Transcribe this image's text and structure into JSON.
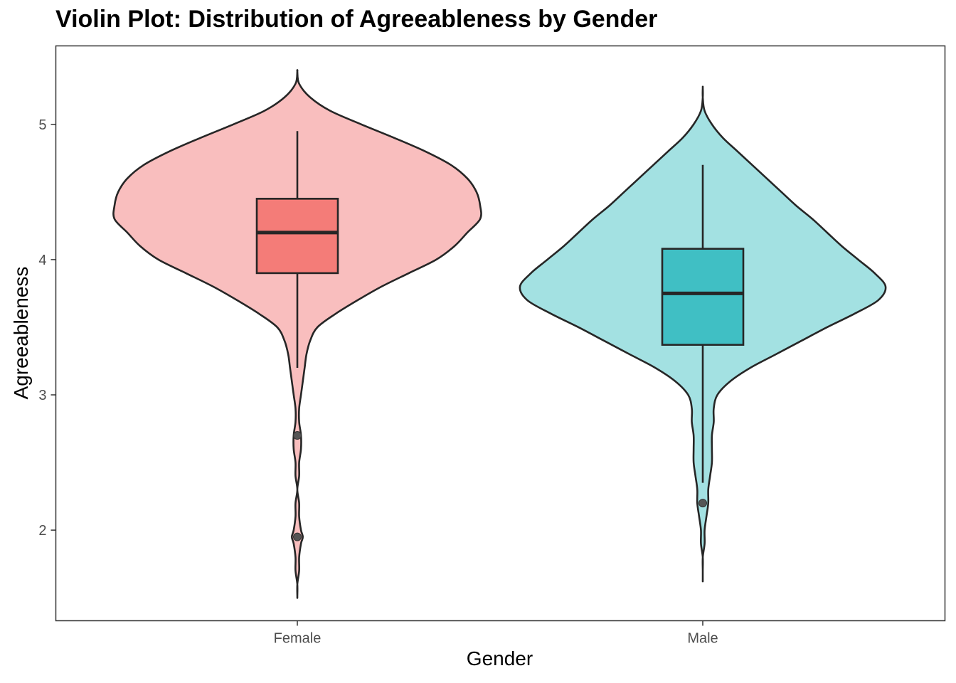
{
  "chart_data": {
    "type": "violin",
    "title": "Violin Plot: Distribution of Agreeableness by Gender",
    "xlabel": "Gender",
    "ylabel": "Agreeableness",
    "ylim": [
      1.33,
      5.58
    ],
    "yticks": [
      2,
      3,
      4,
      5
    ],
    "ytick_labels": [
      "2",
      "3",
      "4",
      "5"
    ],
    "categories": [
      "Female",
      "Male"
    ],
    "grid": false,
    "legend": "none",
    "series": [
      {
        "name": "Female",
        "violin_color": "#F9BEBE",
        "box_color": "#F47C78",
        "box": {
          "min": 3.2,
          "q1": 3.9,
          "median": 4.2,
          "q3": 4.45,
          "max": 4.95
        },
        "outliers": [
          2.7,
          1.95
        ],
        "density_profile": [
          [
            5.39,
            0.0
          ],
          [
            5.3,
            0.01
          ],
          [
            5.2,
            0.07
          ],
          [
            5.1,
            0.18
          ],
          [
            5.0,
            0.35
          ],
          [
            4.9,
            0.53
          ],
          [
            4.8,
            0.7
          ],
          [
            4.7,
            0.84
          ],
          [
            4.6,
            0.93
          ],
          [
            4.5,
            0.98
          ],
          [
            4.4,
            1.0
          ],
          [
            4.3,
            1.0
          ],
          [
            4.2,
            0.93
          ],
          [
            4.1,
            0.86
          ],
          [
            4.0,
            0.76
          ],
          [
            3.9,
            0.61
          ],
          [
            3.8,
            0.46
          ],
          [
            3.7,
            0.33
          ],
          [
            3.6,
            0.21
          ],
          [
            3.5,
            0.11
          ],
          [
            3.4,
            0.07
          ],
          [
            3.3,
            0.05
          ],
          [
            3.2,
            0.04
          ],
          [
            3.1,
            0.03
          ],
          [
            3.0,
            0.02
          ],
          [
            2.9,
            0.01
          ],
          [
            2.8,
            0.01
          ],
          [
            2.7,
            0.02
          ],
          [
            2.6,
            0.02
          ],
          [
            2.5,
            0.01
          ],
          [
            2.4,
            0.01
          ],
          [
            2.3,
            0.0
          ],
          [
            2.2,
            0.01
          ],
          [
            2.1,
            0.01
          ],
          [
            2.0,
            0.02
          ],
          [
            1.95,
            0.03
          ],
          [
            1.9,
            0.02
          ],
          [
            1.8,
            0.01
          ],
          [
            1.7,
            0.01
          ],
          [
            1.6,
            0.0
          ],
          [
            1.51,
            0.0
          ]
        ]
      },
      {
        "name": "Male",
        "violin_color": "#A3E1E2",
        "box_color": "#40BFC4",
        "box": {
          "min": 2.35,
          "q1": 3.37,
          "median": 3.75,
          "q3": 4.08,
          "max": 4.7
        },
        "outliers": [
          2.2
        ],
        "density_profile": [
          [
            5.27,
            0.0
          ],
          [
            5.2,
            0.0
          ],
          [
            5.1,
            0.01
          ],
          [
            5.0,
            0.05
          ],
          [
            4.9,
            0.11
          ],
          [
            4.8,
            0.19
          ],
          [
            4.7,
            0.27
          ],
          [
            4.6,
            0.35
          ],
          [
            4.5,
            0.43
          ],
          [
            4.4,
            0.51
          ],
          [
            4.3,
            0.6
          ],
          [
            4.2,
            0.68
          ],
          [
            4.1,
            0.76
          ],
          [
            4.0,
            0.85
          ],
          [
            3.9,
            0.94
          ],
          [
            3.8,
            1.0
          ],
          [
            3.7,
            0.96
          ],
          [
            3.6,
            0.83
          ],
          [
            3.5,
            0.68
          ],
          [
            3.4,
            0.54
          ],
          [
            3.3,
            0.4
          ],
          [
            3.2,
            0.26
          ],
          [
            3.1,
            0.15
          ],
          [
            3.0,
            0.08
          ],
          [
            2.9,
            0.06
          ],
          [
            2.8,
            0.06
          ],
          [
            2.7,
            0.05
          ],
          [
            2.6,
            0.05
          ],
          [
            2.5,
            0.05
          ],
          [
            2.4,
            0.04
          ],
          [
            2.3,
            0.03
          ],
          [
            2.2,
            0.03
          ],
          [
            2.1,
            0.02
          ],
          [
            2.0,
            0.01
          ],
          [
            1.9,
            0.01
          ],
          [
            1.8,
            0.0
          ],
          [
            1.7,
            0.0
          ],
          [
            1.63,
            0.0
          ]
        ]
      }
    ]
  }
}
